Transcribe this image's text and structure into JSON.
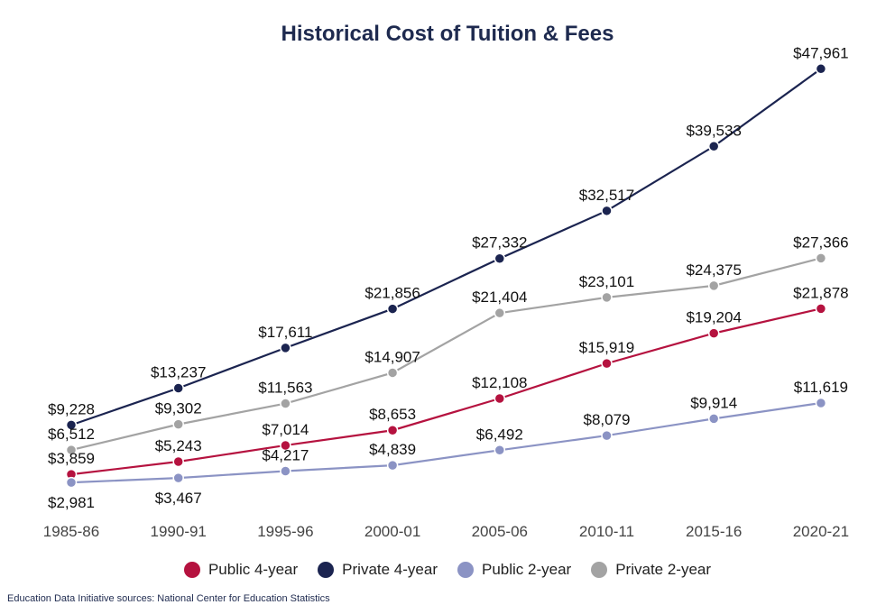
{
  "chart_data": {
    "type": "line",
    "title": "Historical Cost of Tuition & Fees",
    "categories": [
      "1985-86",
      "1990-91",
      "1995-96",
      "2000-01",
      "2005-06",
      "2010-11",
      "2015-16",
      "2020-21"
    ],
    "series": [
      {
        "name": "Public 4-year",
        "color": "#b5123f",
        "values": [
          3859,
          5243,
          7014,
          8653,
          12108,
          15919,
          19204,
          21878
        ],
        "labels": [
          "$3,859",
          "$5,243",
          "$7,014",
          "$8,653",
          "$12,108",
          "$15,919",
          "$19,204",
          "$21,878"
        ]
      },
      {
        "name": "Private 4-year",
        "color": "#1b2450",
        "values": [
          9228,
          13237,
          17611,
          21856,
          27332,
          32517,
          39533,
          47961
        ],
        "labels": [
          "$9,228",
          "$13,237",
          "$17,611",
          "$21,856",
          "$27,332",
          "$32,517",
          "$39,533",
          "$47,961"
        ]
      },
      {
        "name": "Public 2-year",
        "color": "#8b93c4",
        "values": [
          2981,
          3467,
          4217,
          4839,
          6492,
          8079,
          9914,
          11619
        ],
        "labels": [
          "$2,981",
          "$3,467",
          "$4,217",
          "$4,839",
          "$6,492",
          "$8,079",
          "$9,914",
          "$11,619"
        ]
      },
      {
        "name": "Private 2-year",
        "color": "#a3a3a3",
        "values": [
          6512,
          9302,
          11563,
          14907,
          21404,
          23101,
          24375,
          27366
        ],
        "labels": [
          "$6,512",
          "$9,302",
          "$11,563",
          "$14,907",
          "$21,404",
          "$23,101",
          "$24,375",
          "$27,366"
        ]
      }
    ],
    "grid": false,
    "legend_position": "bottom"
  },
  "source_note": "Education Data Initiative sources: National Center for Education Statistics"
}
